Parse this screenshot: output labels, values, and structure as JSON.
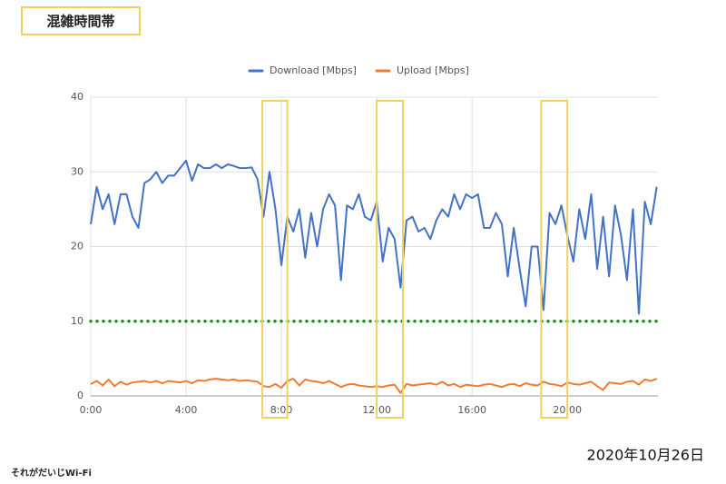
{
  "badge": "混雑時間帯",
  "date": "2020年10月26日",
  "logo": "それがだいじWi-Fi",
  "chart_data": {
    "type": "line",
    "x": [
      0,
      0.25,
      0.5,
      0.75,
      1,
      1.25,
      1.5,
      1.75,
      2,
      2.25,
      2.5,
      2.75,
      3,
      3.25,
      3.5,
      3.75,
      4,
      4.25,
      4.5,
      4.75,
      5,
      5.25,
      5.5,
      5.75,
      6,
      6.25,
      6.5,
      6.75,
      7,
      7.25,
      7.5,
      7.75,
      8,
      8.25,
      8.5,
      8.75,
      9,
      9.25,
      9.5,
      9.75,
      10,
      10.25,
      10.5,
      10.75,
      11,
      11.25,
      11.5,
      11.75,
      12,
      12.25,
      12.5,
      12.75,
      13,
      13.25,
      13.5,
      13.75,
      14,
      14.25,
      14.5,
      14.75,
      15,
      15.25,
      15.5,
      15.75,
      16,
      16.25,
      16.5,
      16.75,
      17,
      17.25,
      17.5,
      17.75,
      18,
      18.25,
      18.5,
      18.75,
      19,
      19.25,
      19.5,
      19.75,
      20,
      20.25,
      20.5,
      20.75,
      21,
      21.25,
      21.5,
      21.75,
      22,
      22.25,
      22.5,
      22.75,
      23,
      23.25,
      23.5,
      23.75
    ],
    "series": [
      {
        "name": "Download [Mbps]",
        "color": "#4472c4",
        "values": [
          23,
          28,
          25,
          27,
          23,
          27,
          27,
          24,
          22.5,
          28.5,
          29,
          30,
          28.5,
          29.5,
          29.5,
          30.5,
          31.5,
          28.8,
          31,
          30.5,
          30.5,
          31,
          30.5,
          31,
          30.8,
          30.5,
          30.5,
          30.6,
          29,
          24,
          30,
          25,
          17.5,
          24,
          22,
          25,
          18.5,
          24.5,
          20,
          25,
          27,
          25.5,
          15.5,
          25.5,
          25,
          27,
          24,
          23.5,
          26,
          18,
          22.5,
          21,
          14.5,
          23.5,
          24,
          22,
          22.5,
          21,
          23.5,
          25,
          24,
          27,
          25,
          27,
          26.5,
          27,
          22.5,
          22.5,
          24.5,
          23,
          16,
          22.5,
          17,
          12,
          20,
          20,
          11.5,
          24.5,
          23,
          25.5,
          21.5,
          18,
          25,
          21,
          27,
          17,
          24,
          16,
          25.5,
          21.5,
          15.5,
          25,
          11,
          26,
          23,
          28
        ]
      },
      {
        "name": "Upload [Mbps]",
        "color": "#ed7d31",
        "values": [
          1.6,
          2.0,
          1.4,
          2.2,
          1.3,
          1.9,
          1.5,
          1.8,
          1.9,
          2.0,
          1.8,
          2.0,
          1.7,
          2.0,
          1.9,
          1.8,
          2.0,
          1.7,
          2.1,
          2.0,
          2.2,
          2.3,
          2.2,
          2.1,
          2.2,
          2.0,
          2.1,
          2.0,
          1.9,
          1.3,
          1.2,
          1.6,
          1.1,
          2.0,
          2.3,
          1.4,
          2.2,
          2.0,
          1.9,
          1.7,
          2.0,
          1.6,
          1.2,
          1.5,
          1.6,
          1.4,
          1.3,
          1.2,
          1.3,
          1.2,
          1.4,
          1.5,
          0.4,
          1.6,
          1.4,
          1.5,
          1.6,
          1.7,
          1.5,
          1.9,
          1.4,
          1.6,
          1.2,
          1.5,
          1.4,
          1.3,
          1.5,
          1.6,
          1.4,
          1.2,
          1.5,
          1.6,
          1.3,
          1.7,
          1.5,
          1.4,
          1.9,
          1.6,
          1.5,
          1.3,
          1.8,
          1.6,
          1.5,
          1.7,
          1.9,
          1.3,
          0.8,
          1.8,
          1.7,
          1.6,
          1.9,
          2.0,
          1.5,
          2.2,
          2.0,
          2.3
        ]
      }
    ],
    "xlim": [
      0,
      23.8
    ],
    "xticks": [
      {
        "value": 0,
        "label": "0:00"
      },
      {
        "value": 4,
        "label": "4:00"
      },
      {
        "value": 8,
        "label": "8:00"
      },
      {
        "value": 12,
        "label": "12:00"
      },
      {
        "value": 16,
        "label": "16:00"
      },
      {
        "value": 20,
        "label": "20:00"
      }
    ],
    "ylim": [
      0,
      40
    ],
    "yticks": [
      0,
      10,
      20,
      30,
      40
    ],
    "grid": true,
    "reference_line": {
      "value": 10,
      "color": "#1e8c1e"
    },
    "highlights": [
      [
        7.2,
        8.25
      ],
      [
        12,
        13.1
      ],
      [
        18.9,
        20
      ]
    ],
    "highlight_color": "#f2d15c"
  }
}
